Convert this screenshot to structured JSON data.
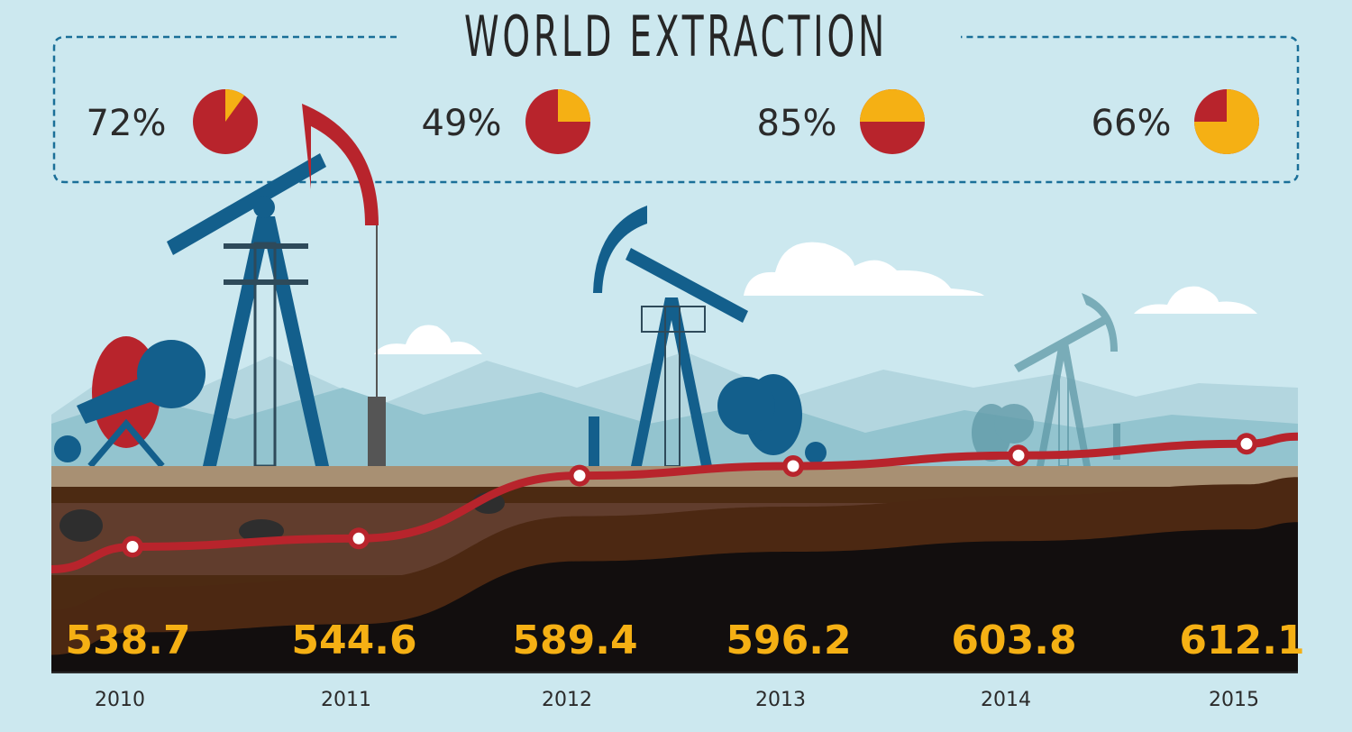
{
  "title": "WORLD EXTRACTION",
  "pies": [
    {
      "label": "72%",
      "yellow_share": 0.1
    },
    {
      "label": "49%",
      "yellow_share": 0.25
    },
    {
      "label": "85%",
      "yellow_share": 0.5
    },
    {
      "label": "66%",
      "yellow_share": 0.75
    }
  ],
  "colors": {
    "background": "#cce8ef",
    "red": "#b8242c",
    "yellow": "#f5b014",
    "pump_blue": "#135f8c",
    "border": "#1a6f98"
  },
  "chart_data": {
    "type": "line",
    "categories": [
      "2010",
      "2011",
      "2012",
      "2013",
      "2014",
      "2015"
    ],
    "values": [
      538.7,
      544.6,
      589.4,
      596.2,
      603.8,
      612.1
    ],
    "value_labels": [
      "538.7",
      "544.6",
      "589.4",
      "596.2",
      "603.8",
      "612.1"
    ],
    "title": "WORLD EXTRACTION",
    "grid": false
  }
}
